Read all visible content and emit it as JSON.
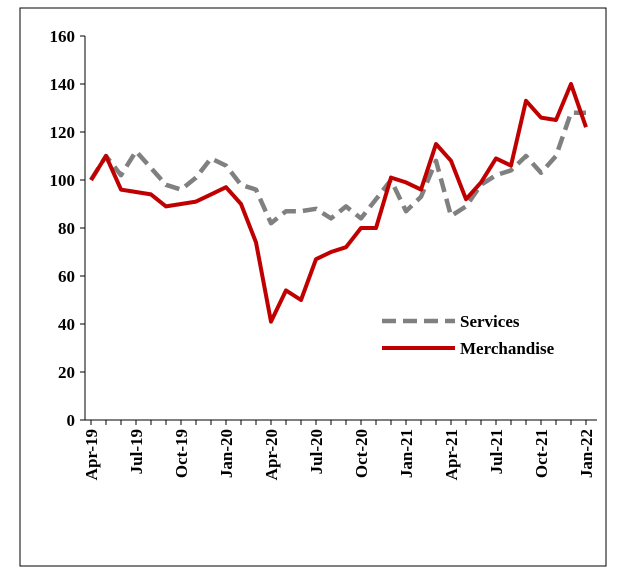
{
  "chart_data": {
    "type": "line",
    "categories": [
      "Apr-19",
      null,
      null,
      "Jul-19",
      null,
      null,
      "Oct-19",
      null,
      null,
      "Jan-20",
      null,
      null,
      "Apr-20",
      null,
      null,
      "Jul-20",
      null,
      null,
      "Oct-20",
      null,
      null,
      "Jan-21",
      null,
      null,
      "Apr-21",
      null,
      null,
      "Jul-21",
      null,
      null,
      "Oct-21",
      null,
      null,
      "Jan-22"
    ],
    "series": [
      {
        "name": "Services",
        "color": "#808080",
        "dash": true,
        "values": [
          100,
          110,
          102,
          112,
          105,
          98,
          96,
          101,
          109,
          106,
          98,
          96,
          82,
          87,
          87,
          88,
          84,
          89,
          84,
          92,
          100,
          87,
          93,
          108,
          85,
          89,
          98,
          102,
          104,
          110,
          103,
          110,
          128,
          128
        ]
      },
      {
        "name": "Merchandise",
        "color": "#c00000",
        "dash": false,
        "values": [
          100,
          110,
          96,
          95,
          94,
          89,
          90,
          91,
          94,
          97,
          90,
          74,
          41,
          54,
          50,
          67,
          70,
          72,
          80,
          80,
          101,
          99,
          96,
          115,
          108,
          92,
          99,
          109,
          106,
          133,
          126,
          125,
          140,
          122
        ]
      }
    ],
    "ylim": [
      0,
      160
    ],
    "yticks": [
      0,
      20,
      40,
      60,
      80,
      100,
      120,
      140,
      160
    ],
    "legend": "right"
  }
}
